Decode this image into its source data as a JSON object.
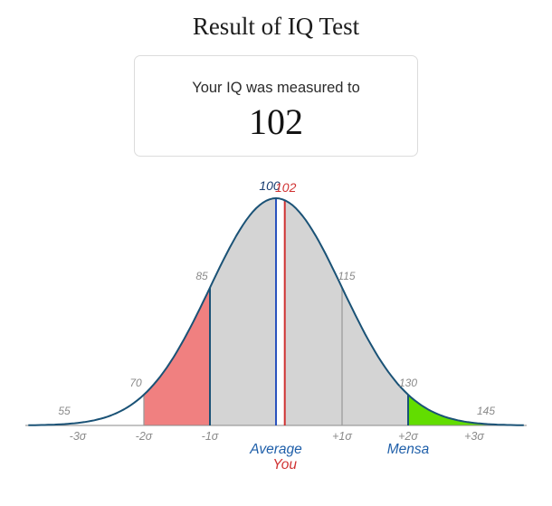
{
  "page": {
    "title": "Result of IQ Test"
  },
  "result_card": {
    "message": "Your IQ was measured to",
    "iq_value": "102"
  },
  "chart_data": {
    "type": "area",
    "title": "IQ normal distribution bell curve",
    "distribution": "normal",
    "mean_iq": 100,
    "sd_iq": 15,
    "x_domain_sigma": [
      -3.75,
      3.75
    ],
    "curve_color": "#1a5276",
    "axis_color": "#8a8a8a",
    "axis_ticks": [
      {
        "sigma": -3,
        "label": "-3σ"
      },
      {
        "sigma": -2,
        "label": "-2σ"
      },
      {
        "sigma": -1,
        "label": "-1σ"
      },
      {
        "sigma": 1,
        "label": "+1σ"
      },
      {
        "sigma": 2,
        "label": "+2σ"
      },
      {
        "sigma": 3,
        "label": "+3σ"
      }
    ],
    "regions": [
      {
        "name": "below-average-band",
        "from_sigma": -2,
        "to_sigma": -1,
        "fill": "#f08080"
      },
      {
        "name": "average-band",
        "from_sigma": -1,
        "to_sigma": 2,
        "fill": "#d4d4d4"
      },
      {
        "name": "you-gap-band",
        "from_sigma": 0,
        "to_sigma": 0.133,
        "fill": "#ffffff"
      },
      {
        "name": "mensa-band",
        "from_sigma": 2,
        "to_sigma": 3.75,
        "fill": "#62dd00"
      }
    ],
    "markers": [
      {
        "iq": "55",
        "sigma": -3,
        "label_color": "#8a8a8a",
        "label_dx": -15,
        "label_size": 12,
        "line": false
      },
      {
        "iq": "70",
        "sigma": -2,
        "label_color": "#8a8a8a",
        "label_dx": -9,
        "label_size": 12,
        "line": true,
        "line_color": "#9b9b9b",
        "line_width": 1.3
      },
      {
        "iq": "85",
        "sigma": -1,
        "label_color": "#8a8a8a",
        "label_dx": -9,
        "label_size": 12,
        "line": true,
        "line_color": "#1a5276",
        "line_width": 2
      },
      {
        "iq": "100",
        "sigma": 0,
        "label_color": "#1a3e72",
        "label_dx": -7,
        "label_size": 14,
        "line": true,
        "line_color": "#2a52be",
        "line_width": 2
      },
      {
        "iq": "102",
        "sigma": 0.133,
        "label_color": "#d03232",
        "label_dx": 1,
        "label_size": 14,
        "line": true,
        "line_color": "#d03232",
        "line_width": 2
      },
      {
        "iq": "115",
        "sigma": 1,
        "label_color": "#8a8a8a",
        "label_dx": 5,
        "label_size": 12,
        "line": true,
        "line_color": "#9b9b9b",
        "line_width": 1.3
      },
      {
        "iq": "130",
        "sigma": 2,
        "label_color": "#8a8a8a",
        "label_dx": 0,
        "label_size": 12,
        "line": true,
        "line_color": "#1a5276",
        "line_width": 2
      },
      {
        "iq": "145",
        "sigma": 3,
        "label_color": "#8a8a8a",
        "label_dx": 13,
        "label_size": 12,
        "line": false
      }
    ],
    "annotations": [
      {
        "text": "Average",
        "sigma": 0,
        "color": "#1f5fa9",
        "row": 0
      },
      {
        "text": "You",
        "sigma": 0.133,
        "color": "#d03232",
        "row": 1
      },
      {
        "text": "Mensa",
        "sigma": 2,
        "color": "#1f5fa9",
        "row": 0
      }
    ]
  }
}
